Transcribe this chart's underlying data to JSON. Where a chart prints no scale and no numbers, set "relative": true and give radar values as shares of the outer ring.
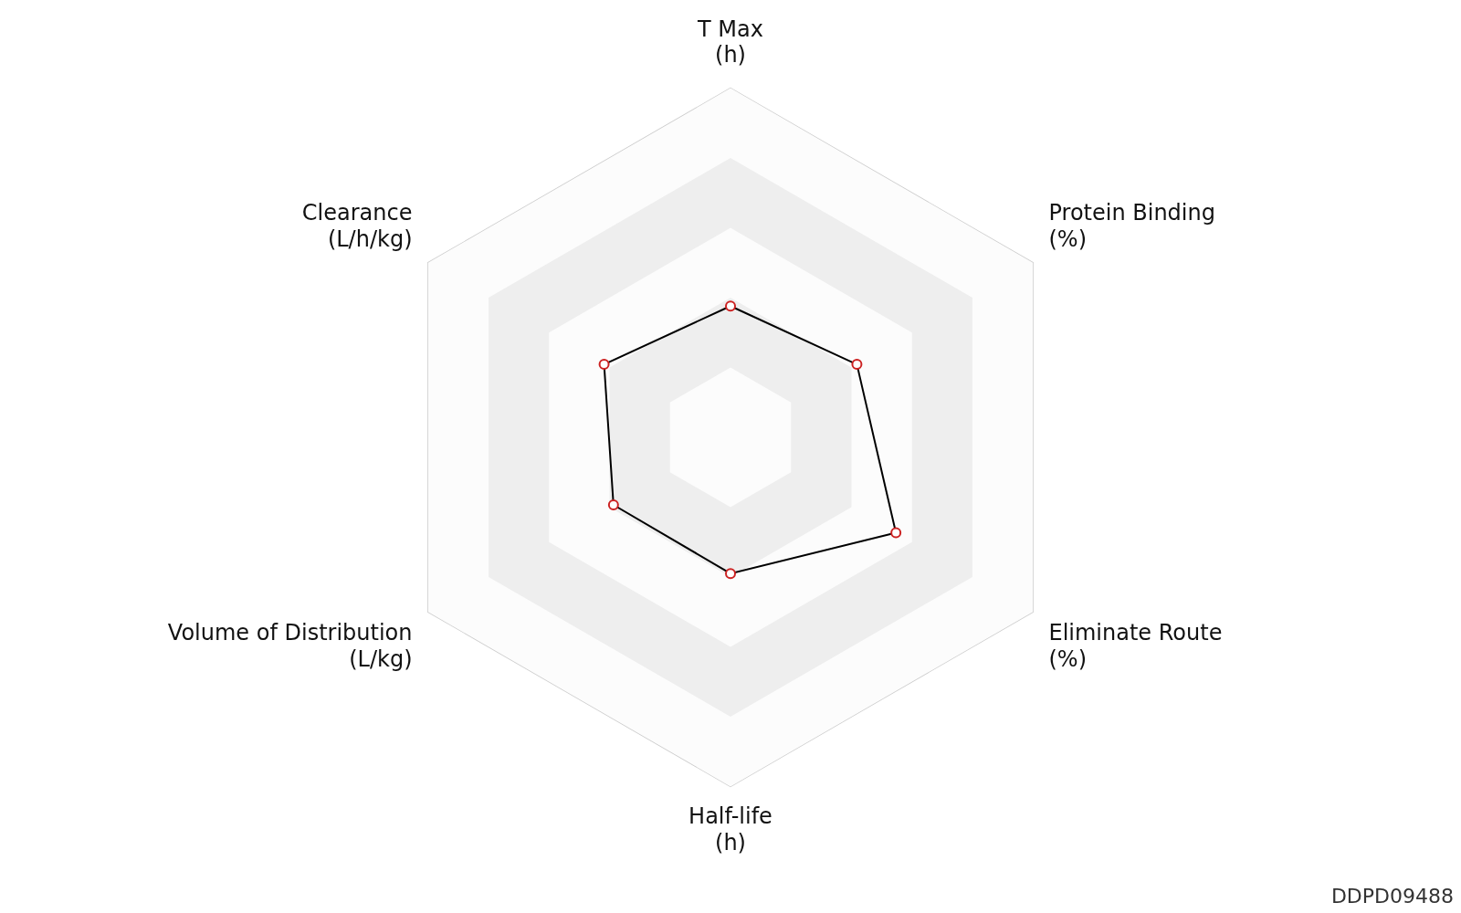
{
  "chart_data": {
    "type": "radar",
    "relative": true,
    "categories": [
      "T Max\n(h)",
      "Protein Binding\n(%)",
      "Eliminate Route\n(%)",
      "Half-life\n(h)",
      "Volume of Distribution\n(L/kg)",
      "Clearance\n(L/h/kg)"
    ],
    "series": [
      {
        "color": "#000000",
        "values": [
          0.376,
          0.418,
          0.547,
          0.39,
          0.387,
          0.418
        ]
      }
    ],
    "marker": "circle",
    "legend": false,
    "annotations": [
      "DDPD09488"
    ]
  }
}
